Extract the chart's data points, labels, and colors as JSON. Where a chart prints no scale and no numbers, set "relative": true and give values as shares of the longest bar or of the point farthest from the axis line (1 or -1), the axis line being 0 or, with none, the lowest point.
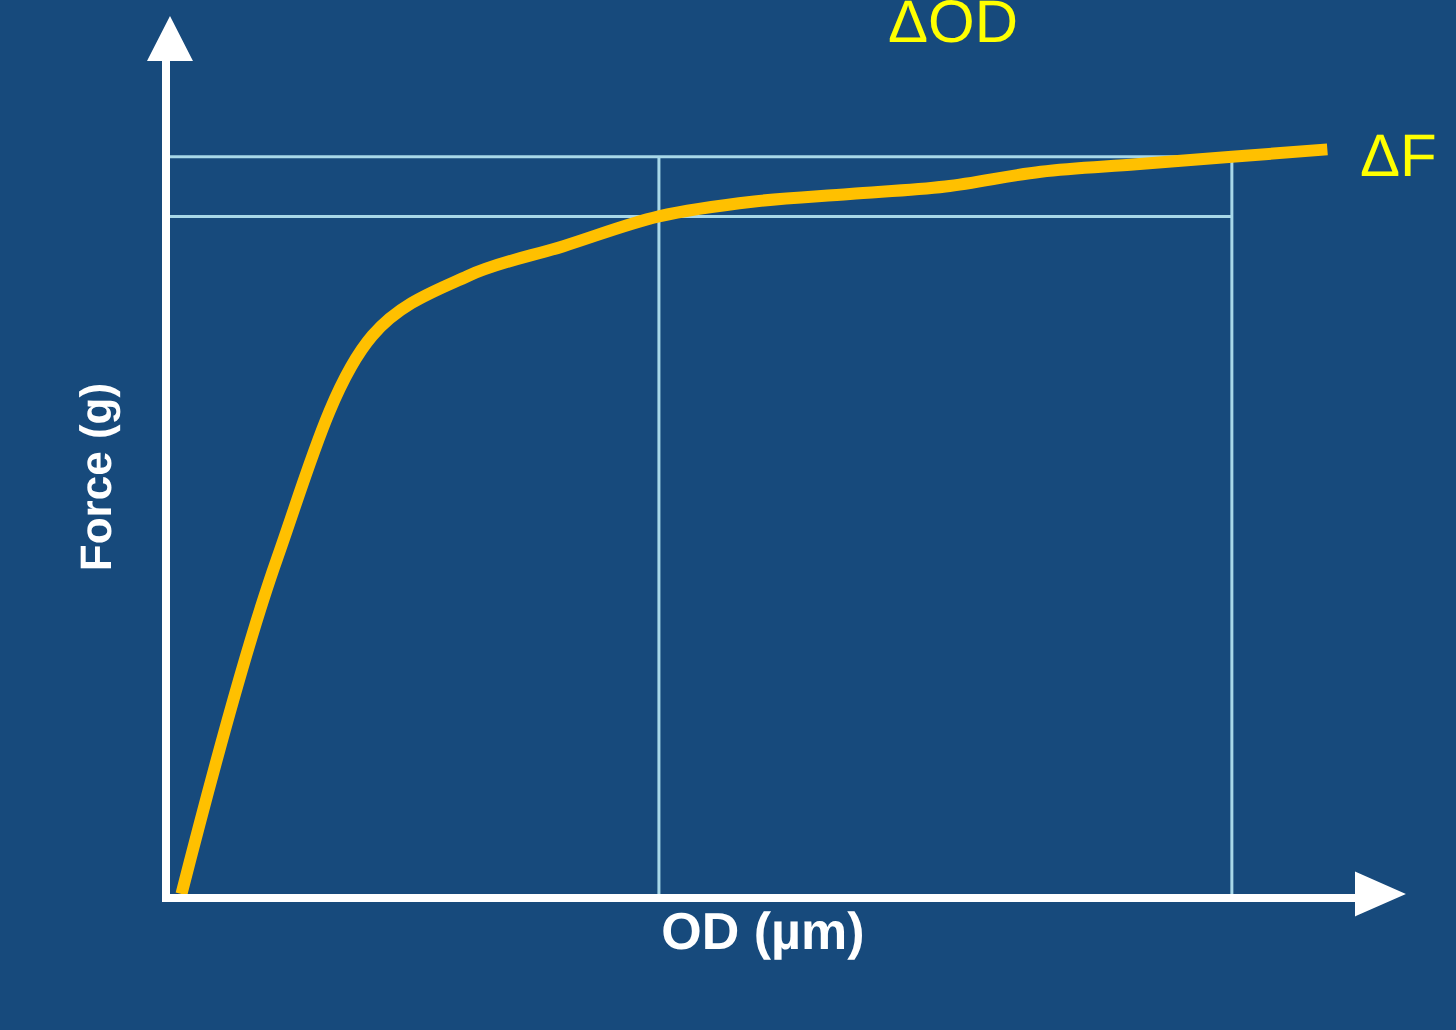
{
  "chart_data": {
    "type": "line",
    "relative": true,
    "xlabel": "OD (µm)",
    "ylabel": "Force (g)",
    "categories": [
      null,
      null,
      null,
      null,
      null,
      null,
      null,
      null,
      null,
      null,
      null,
      null,
      null
    ],
    "series": [
      {
        "color": "#ffc000",
        "values": [
          0.0,
          0.45,
          0.75,
          0.83,
          0.87,
          0.91,
          0.93,
          0.94,
          0.95,
          0.97,
          0.98,
          0.99,
          1.0
        ]
      }
    ],
    "ref_lines": [
      {
        "axis": "y",
        "value": 0.91,
        "color": "#a8d8e8"
      },
      {
        "axis": "y",
        "value": 0.99,
        "color": "#a8d8e8"
      }
    ],
    "annotations": [
      "ΔOD",
      "ΔF"
    ],
    "grid": false,
    "legend": false,
    "marker": "none",
    "line_style": "solid"
  }
}
